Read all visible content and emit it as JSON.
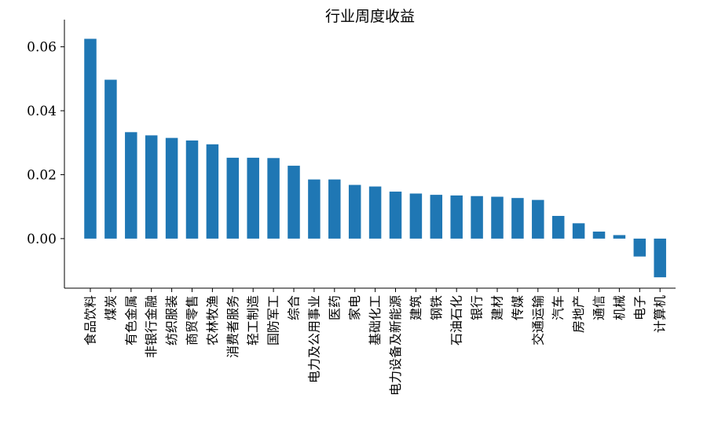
{
  "chart_data": {
    "type": "bar",
    "title": "行业周度收益",
    "xlabel": "",
    "ylabel": "",
    "categories": [
      "食品饮料",
      "煤炭",
      "有色金属",
      "非银行金融",
      "纺织服装",
      "商贸零售",
      "农林牧渔",
      "消费者服务",
      "轻工制造",
      "国防军工",
      "综合",
      "电力及公用事业",
      "医药",
      "家电",
      "基础化工",
      "电力设备及新能源",
      "建筑",
      "钢铁",
      "石油石化",
      "银行",
      "建材",
      "传媒",
      "交通运输",
      "汽车",
      "房地产",
      "通信",
      "机械",
      "电子",
      "计算机"
    ],
    "values": [
      0.0625,
      0.0497,
      0.0333,
      0.0323,
      0.0315,
      0.0307,
      0.0295,
      0.0253,
      0.0253,
      0.0252,
      0.0228,
      0.0185,
      0.0185,
      0.0168,
      0.0163,
      0.0147,
      0.0141,
      0.0137,
      0.0135,
      0.0133,
      0.0131,
      0.0127,
      0.0121,
      0.0071,
      0.0048,
      0.0022,
      0.0011,
      -0.0056,
      -0.0121
    ],
    "yticks": [
      "0.00",
      "0.02",
      "0.04",
      "0.06"
    ],
    "ytick_values": [
      0.0,
      0.02,
      0.04,
      0.06
    ],
    "ylim": [
      -0.0155,
      0.0685
    ],
    "bar_color": "#1f77b4",
    "grid": false,
    "legend": "none"
  }
}
